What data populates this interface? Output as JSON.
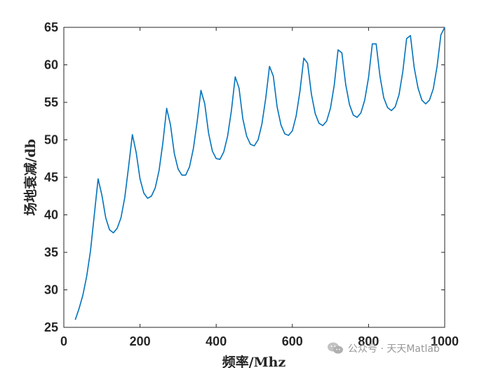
{
  "chart_data": {
    "type": "line",
    "xlabel": "频率/Mhz",
    "ylabel": "场地衰减/db",
    "xlim": [
      0,
      1000
    ],
    "ylim": [
      25,
      65
    ],
    "xticks": [
      "0",
      "200",
      "400",
      "600",
      "800",
      "1000"
    ],
    "yticks": [
      "25",
      "30",
      "35",
      "40",
      "45",
      "50",
      "55",
      "60",
      "65"
    ],
    "grid": false,
    "line_color": "#0072BD",
    "series": [
      {
        "x": [
          30,
          40,
          50,
          60,
          70,
          80,
          90,
          100,
          110,
          120,
          130,
          140,
          150,
          160,
          170,
          180,
          190,
          200,
          210,
          220,
          230,
          240,
          250,
          260,
          270,
          280,
          290,
          300,
          310,
          320,
          330,
          340,
          350,
          360,
          370,
          380,
          390,
          400,
          410,
          420,
          430,
          440,
          450,
          460,
          470,
          480,
          490,
          500,
          510,
          520,
          530,
          540,
          550,
          560,
          570,
          580,
          590,
          600,
          610,
          620,
          630,
          640,
          650,
          660,
          670,
          680,
          690,
          700,
          710,
          720,
          730,
          740,
          750,
          760,
          770,
          780,
          790,
          800,
          810,
          820,
          830,
          840,
          850,
          860,
          870,
          880,
          890,
          900,
          910,
          920,
          930,
          940,
          950,
          960,
          970,
          980,
          990,
          1000
        ],
        "values": [
          26.0,
          27.5,
          29.3,
          31.8,
          35.2,
          40.0,
          44.8,
          42.6,
          39.6,
          38.0,
          37.6,
          38.2,
          39.6,
          42.3,
          46.4,
          50.7,
          48.3,
          44.8,
          42.9,
          42.2,
          42.5,
          43.6,
          45.9,
          49.6,
          54.2,
          52.0,
          48.2,
          46.1,
          45.3,
          45.3,
          46.4,
          48.8,
          52.4,
          56.6,
          54.8,
          50.9,
          48.5,
          47.5,
          47.4,
          48.4,
          50.5,
          53.9,
          58.4,
          56.9,
          52.8,
          50.5,
          49.4,
          49.2,
          50.0,
          52.1,
          55.5,
          59.8,
          58.5,
          54.4,
          52.0,
          50.8,
          50.6,
          51.2,
          53.2,
          56.5,
          60.9,
          60.2,
          56.1,
          53.5,
          52.2,
          51.9,
          52.5,
          54.2,
          57.3,
          62.0,
          61.6,
          57.4,
          54.7,
          53.3,
          53.0,
          53.6,
          55.3,
          58.3,
          62.8,
          62.8,
          58.5,
          55.6,
          54.3,
          53.9,
          54.4,
          56.0,
          59.1,
          63.5,
          63.9,
          59.6,
          56.9,
          55.3,
          54.8,
          55.3,
          56.8,
          59.8,
          64.0,
          65.0
        ]
      }
    ]
  },
  "watermark": {
    "text": "公众号 · 天天Matlab",
    "icon": "wechat-icon"
  }
}
